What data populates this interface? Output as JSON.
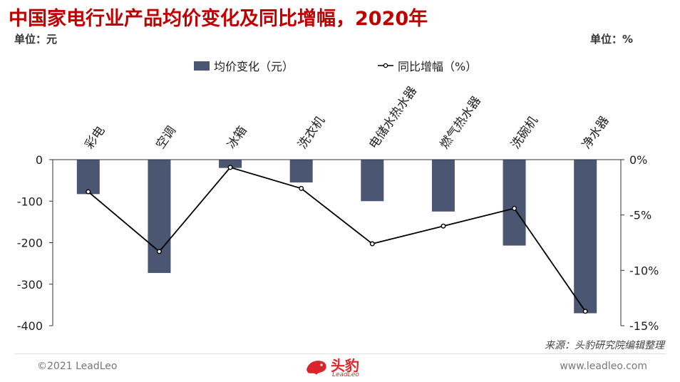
{
  "header": {
    "title": "中国家电行业产品均价变化及同比增幅，2020年",
    "unit_left": "单位：元",
    "unit_right": "单位：%"
  },
  "chart_data": {
    "type": "bar",
    "categories": [
      "彩电",
      "空调",
      "冰箱",
      "洗衣机",
      "电储水热水器",
      "燃气热水器",
      "洗碗机",
      "净水器"
    ],
    "series": [
      {
        "name": "均价变化（元）",
        "type": "bar",
        "axis": "left",
        "values": [
          -83,
          -273,
          -20,
          -55,
          -100,
          -125,
          -207,
          -370
        ]
      },
      {
        "name": "同比增幅（%）",
        "type": "line",
        "axis": "right",
        "values": [
          -2.9,
          -8.3,
          -0.7,
          -2.6,
          -7.6,
          -6.0,
          -4.4,
          -13.7
        ]
      }
    ],
    "ylim_left": [
      -400,
      0
    ],
    "yticks_left": [
      "0",
      "-100",
      "-200",
      "-300",
      "-400"
    ],
    "ylim_right": [
      -15,
      0
    ],
    "yticks_right": [
      "0%",
      "-5%",
      "-10%",
      "-15%"
    ],
    "legend_position": "top",
    "grid": false,
    "colors": {
      "bar": "#4a5672",
      "line": "#000000"
    }
  },
  "legend": {
    "bar_label": "均价变化（元）",
    "line_label": "同比增幅（%）"
  },
  "source": "来源：头豹研究院编辑整理",
  "footer": {
    "copyright": "©2021 LeadLeo",
    "website": "www.leadleo.com",
    "logo_text": "头豹",
    "logo_sub": "LeadLeo"
  }
}
